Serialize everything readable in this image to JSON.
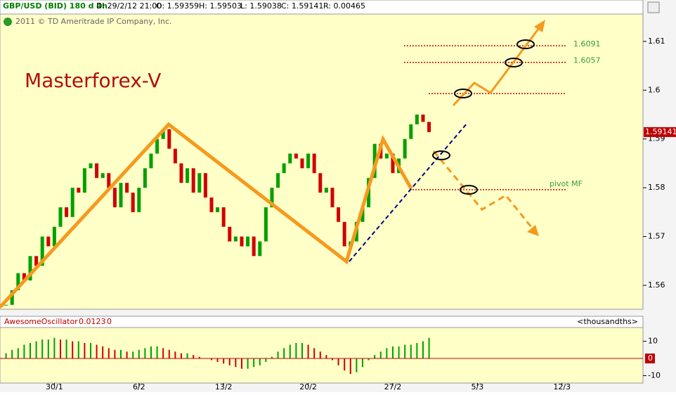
{
  "header": {
    "symbol": "GBP/USD (BID) 180 d 4h",
    "date": "D: 29/2/12 21:00",
    "open": "O: 1.59359",
    "high": "H: 1.59503",
    "low": "L: 1.59038",
    "close": "C: 1.59141",
    "range": "R: 0.00465",
    "copyright": "2011 © TD Ameritrade IP Company, Inc."
  },
  "chart_data": [
    {
      "type": "candlestick",
      "title": "Masterforex-V",
      "x": [
        26,
        26.5,
        27,
        27.5,
        28,
        28.5,
        29,
        29.5,
        30,
        30.5,
        31,
        31.5,
        32,
        32.5,
        33,
        33.5,
        34,
        34.5,
        35,
        35.5,
        36,
        36.5,
        37,
        37.5,
        38,
        38.5,
        39,
        39.5,
        40,
        40.5,
        41,
        41.5,
        42,
        42.5,
        43,
        43.5,
        44,
        44.5,
        45,
        45.5,
        46,
        46.5,
        47,
        47.5,
        48,
        48.5,
        49,
        49.5,
        50,
        50.5,
        51,
        51.5,
        52,
        52.5,
        53,
        53.5,
        54,
        54.5,
        55,
        55.5,
        56,
        56.5,
        57,
        57.5,
        58,
        58.5,
        59,
        59.5,
        60,
        60.5,
        61
      ],
      "values": [
        1.556,
        1.559,
        1.5625,
        1.561,
        1.566,
        1.564,
        1.57,
        1.568,
        1.572,
        1.576,
        1.574,
        1.58,
        1.579,
        1.584,
        1.585,
        1.582,
        1.583,
        1.58,
        1.576,
        1.581,
        1.579,
        1.575,
        1.58,
        1.584,
        1.587,
        1.59,
        1.592,
        1.588,
        1.585,
        1.581,
        1.584,
        1.579,
        1.583,
        1.578,
        1.575,
        1.576,
        1.572,
        1.569,
        1.57,
        1.568,
        1.57,
        1.566,
        1.569,
        1.576,
        1.58,
        1.583,
        1.585,
        1.587,
        1.586,
        1.584,
        1.587,
        1.583,
        1.579,
        1.58,
        1.576,
        1.573,
        1.568,
        1.569,
        1.573,
        1.576,
        1.582,
        1.589,
        1.586,
        1.587,
        1.583,
        1.586,
        1.59,
        1.593,
        1.595,
        1.5935,
        1.59141
      ],
      "up_color": "#00a000",
      "down_color": "#d00000",
      "xlim": [
        25.5,
        78.7
      ],
      "xticks": [
        {
          "value": 30,
          "label": "30/1"
        },
        {
          "value": 37,
          "label": "6/2"
        },
        {
          "value": 44,
          "label": "13/2"
        },
        {
          "value": 51,
          "label": "20/2"
        },
        {
          "value": 58,
          "label": "27/2"
        },
        {
          "value": 65,
          "label": "5/3"
        },
        {
          "value": 72,
          "label": "12/3"
        }
      ],
      "ylim": [
        1.5551,
        1.6156
      ],
      "yticks": [
        1.61,
        1.6,
        1.59,
        1.58,
        1.57,
        1.56
      ],
      "levels": [
        {
          "value": 1.6091,
          "label": "1.6091"
        },
        {
          "value": 1.6057,
          "label": "1.6057"
        },
        {
          "value": 1.5993
        },
        {
          "value": 1.5796,
          "label": "pivot MF"
        }
      ],
      "level_color": "#cc0000"
    },
    {
      "type": "bar",
      "title": "AwesomeOscillator",
      "reading": "0.0123",
      "parameters": [
        "0"
      ],
      "units": "<thousandths>",
      "values": [
        3,
        5,
        6,
        8,
        9,
        10,
        11,
        11,
        12,
        11,
        11,
        10,
        10,
        9,
        9,
        8,
        7,
        6,
        5,
        5,
        4,
        4,
        5,
        6,
        7,
        7,
        6,
        5,
        4,
        3,
        3,
        2,
        1,
        0,
        -1,
        -2,
        -3,
        -4,
        -5,
        -6,
        -6,
        -5,
        -4,
        -2,
        1,
        4,
        6,
        8,
        9,
        9,
        8,
        6,
        4,
        2,
        -1,
        -4,
        -7,
        -9,
        -8,
        -5,
        -1,
        2,
        4,
        6,
        7,
        7,
        8,
        8,
        9,
        10,
        12
      ],
      "up_color": "#00a000",
      "down_color": "#d00000",
      "ylim": [
        -14.3,
        18
      ],
      "yticks": [
        10,
        0,
        -10
      ]
    }
  ]
}
